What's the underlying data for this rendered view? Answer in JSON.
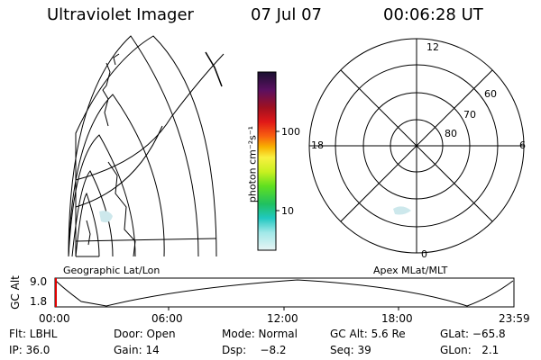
{
  "header": {
    "title": "Ultraviolet Imager",
    "date": "07 Jul 07",
    "time": "00:06:28 UT"
  },
  "panels": {
    "left_label": "Geographic Lat/Lon",
    "right_label": "Apex MLat/MLT"
  },
  "polar_plot": {
    "mlt_labels": {
      "top": "12",
      "right": "6",
      "bottom": "0",
      "left": "18"
    },
    "lat_labels": [
      "60",
      "70",
      "80"
    ]
  },
  "colorbar": {
    "unit_label": "photon cm⁻²s⁻¹",
    "ticks": [
      "100",
      "10"
    ],
    "colors": [
      "#1a1030",
      "#5a1060",
      "#a01020",
      "#e01818",
      "#f86010",
      "#f8b000",
      "#f8f040",
      "#c8f020",
      "#60e020",
      "#20c060",
      "#20c8c0",
      "#a0e8e8",
      "#e8f4f4"
    ]
  },
  "timeline": {
    "axis_label": "GC Alt",
    "y_ticks": [
      "9.0",
      "1.8"
    ],
    "x_ticks": [
      "00:00",
      "06:00",
      "12:00",
      "18:00",
      "23:59"
    ]
  },
  "info": {
    "row1": {
      "flt": "Flt: LBHL",
      "door": "Door: Open",
      "mode": "Mode: Normal",
      "gc_alt": "GC Alt: 5.6 Re",
      "glat": "GLat: −65.8"
    },
    "row2": {
      "ip": "IP: 36.0",
      "gain": "Gain: 14",
      "dsp": "Dsp:    −8.2",
      "seq": "Seq: 39",
      "glon": "GLon:   2.1"
    }
  }
}
